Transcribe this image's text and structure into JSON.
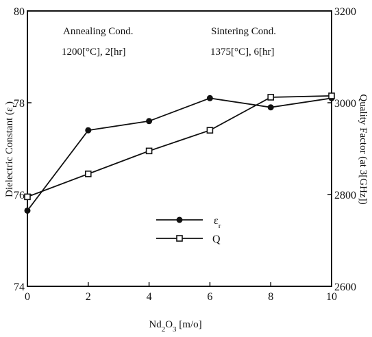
{
  "chart_data": {
    "type": "line",
    "x": [
      0,
      2,
      4,
      6,
      8,
      10
    ],
    "x_ticks": [
      "0",
      "2",
      "4",
      "6",
      "8",
      "10"
    ],
    "xlim": [
      0,
      10
    ],
    "xlabel_parts": {
      "a": "Nd",
      "sub1": "2",
      "b": "O",
      "sub2": "3",
      "c": " [m/o]"
    },
    "ylabel_left_parts": {
      "a": "Dielectric Constant (ε",
      "sub": "r",
      "b": ")"
    },
    "ylabel_right": "Quality Factor (at 3[GHz])",
    "y_left_lim": [
      74,
      80
    ],
    "y_left_ticks": [
      "74",
      "76",
      "78",
      "80"
    ],
    "y_right_lim": [
      2600,
      3200
    ],
    "y_right_ticks": [
      "2600",
      "2800",
      "3000",
      "3200"
    ],
    "series": [
      {
        "label_parts": {
          "a": "ε",
          "sub": "r"
        },
        "axis": "left",
        "marker": "filled-circle",
        "values": [
          75.65,
          77.4,
          77.6,
          78.1,
          77.9,
          78.1
        ]
      },
      {
        "label_parts": {
          "a": "Q",
          "sub": ""
        },
        "axis": "right",
        "marker": "open-square",
        "values": [
          2795,
          2845,
          2895,
          2940,
          3012,
          3015
        ]
      }
    ],
    "annotations": {
      "annealing_title": "Annealing Cond.",
      "annealing_value": "1200[°C],  2[hr]",
      "sintering_title": "Sintering Cond.",
      "sintering_value": "1375[°C],  6[hr]"
    },
    "legend_position": "lower-center",
    "grid": false,
    "colors": {
      "line": "#111111",
      "background": "#ffffff"
    }
  }
}
